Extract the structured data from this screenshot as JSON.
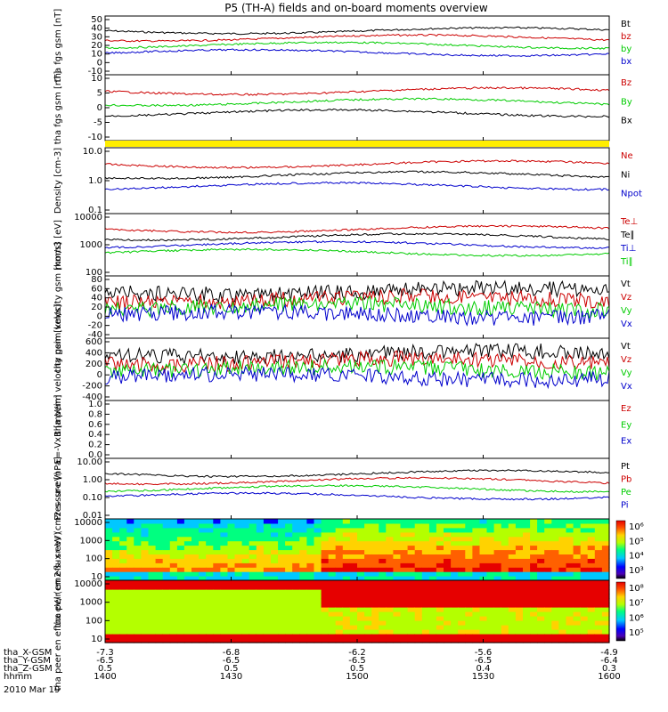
{
  "chart_data": {
    "type": "line",
    "title": "P5 (TH-A) fields and on-board moments overview",
    "date": "2010 Mar 19",
    "time_axis": {
      "label": "hhmm",
      "ticks": [
        "1400",
        "1430",
        "1500",
        "1530",
        "1600"
      ]
    },
    "ephemeris": [
      {
        "label": "tha_X-GSM",
        "values": [
          "-7.3",
          "-6.8",
          "-6.2",
          "-5.6",
          "-4.9"
        ]
      },
      {
        "label": "tha_Y-GSM",
        "values": [
          "-6.5",
          "-6.5",
          "-6.5",
          "-6.5",
          "-6.4"
        ]
      },
      {
        "label": "tha_Z-GSM",
        "values": [
          "0.5",
          "0.5",
          "0.5",
          "0.4",
          "0.3"
        ]
      }
    ],
    "panels": [
      {
        "id": "fgs_gsm",
        "ylabel": [
          "tha",
          "fgs",
          "gsm",
          "[nT]"
        ],
        "ylim": [
          -10,
          50
        ],
        "ticks": [
          "50",
          "40",
          "30",
          "20",
          "10",
          "0",
          "-10"
        ],
        "series": [
          {
            "name": "Bt",
            "color": "#000000"
          },
          {
            "name": "bz",
            "color": "#cc0000"
          },
          {
            "name": "by",
            "color": "#00cc00"
          },
          {
            "name": "bx",
            "color": "#0000cc"
          }
        ]
      },
      {
        "id": "fgs_sm",
        "ylabel": [
          "tha",
          "fgs",
          "gsm",
          "[nT]"
        ],
        "ylim": [
          -15,
          10
        ],
        "ticks": [
          "10",
          "5",
          "0",
          "-5",
          "-10"
        ],
        "series": [
          {
            "name": "Bz",
            "color": "#cc0000"
          },
          {
            "name": "By",
            "color": "#00cc00"
          },
          {
            "name": "Bx",
            "color": "#000000"
          }
        ]
      },
      {
        "id": "density",
        "ylabel": [
          "Density",
          "[cm-3]"
        ],
        "ylim": [
          0.1,
          10
        ],
        "log": true,
        "ticks": [
          "10.0",
          "1.0",
          "0.1"
        ],
        "series": [
          {
            "name": "Ne",
            "color": "#cc0000"
          },
          {
            "name": "Ni",
            "color": "#000000"
          },
          {
            "name": "Npot",
            "color": "#0000cc"
          }
        ]
      },
      {
        "id": "temperature",
        "ylabel": [
          "mom3",
          "[eV]"
        ],
        "ylim": [
          100,
          10000
        ],
        "log": true,
        "ticks": [
          "10000",
          "1000",
          "100"
        ],
        "series": [
          {
            "name": "Te⊥",
            "color": "#cc0000"
          },
          {
            "name": "Te∥",
            "color": "#000000"
          },
          {
            "name": "Ti⊥",
            "color": "#0000cc"
          },
          {
            "name": "Ti∥",
            "color": "#00cc00"
          }
        ]
      },
      {
        "id": "velocity_e",
        "ylabel": [
          "tha",
          "peim",
          "velocity",
          "gsm",
          "[km/s]"
        ],
        "ylim": [
          -40,
          80
        ],
        "ticks": [
          "80",
          "60",
          "40",
          "20",
          "0",
          "-20",
          "-40"
        ],
        "series": [
          {
            "name": "Vt",
            "color": "#000000"
          },
          {
            "name": "Vz",
            "color": "#cc0000"
          },
          {
            "name": "Vy",
            "color": "#00cc00"
          },
          {
            "name": "Vx",
            "color": "#0000cc"
          }
        ]
      },
      {
        "id": "velocity_i",
        "ylabel": [
          "tha",
          "peim",
          "velocity",
          "gsm",
          "[km/s]"
        ],
        "ylim": [
          -600,
          600
        ],
        "ticks": [
          "600",
          "400",
          "200",
          "0",
          "-200",
          "-400"
        ],
        "series": [
          {
            "name": "Vt",
            "color": "#000000"
          },
          {
            "name": "Vz",
            "color": "#cc0000"
          },
          {
            "name": "Vy",
            "color": "#00cc00"
          },
          {
            "name": "Vx",
            "color": "#0000cc"
          }
        ]
      },
      {
        "id": "efield",
        "ylabel": [
          "E=-VxB",
          "[mV/m]"
        ],
        "ylim": [
          0,
          1
        ],
        "ticks": [
          "1.0",
          "0.8",
          "0.6",
          "0.4",
          "0.2",
          "0.0"
        ],
        "series": [
          {
            "name": "Ez",
            "color": "#cc0000"
          },
          {
            "name": "Ey",
            "color": "#00cc00"
          },
          {
            "name": "Ex",
            "color": "#0000cc"
          }
        ]
      },
      {
        "id": "pressure",
        "ylabel": [
          "Pressure",
          "[nPa]"
        ],
        "ylim": [
          0.01,
          10
        ],
        "log": true,
        "ticks": [
          "10.00",
          "1.00",
          "0.10",
          "0.01"
        ],
        "series": [
          {
            "name": "Pt",
            "color": "#000000"
          },
          {
            "name": "Pb",
            "color": "#cc0000"
          },
          {
            "name": "Pe",
            "color": "#00cc00"
          },
          {
            "name": "Pi",
            "color": "#0000cc"
          }
        ]
      },
      {
        "id": "ion_spec",
        "type": "heatmap",
        "ylabel": [
          "tha",
          "peir",
          "en",
          "eflux",
          "eV/",
          "(cm2-s-",
          "sr-eV)"
        ],
        "ylim": [
          10,
          10000
        ],
        "log": true,
        "ticks": [
          "10000",
          "1000",
          "100",
          "10"
        ],
        "colorbar": [
          "10⁶",
          "10⁵",
          "10⁴",
          "10³"
        ]
      },
      {
        "id": "elec_spec",
        "type": "heatmap",
        "ylabel": [
          "tha",
          "peer",
          "en",
          "eflux",
          "eV/",
          "(cm2-s-",
          "sr-eV)"
        ],
        "ylim": [
          10,
          10000
        ],
        "log": true,
        "ticks": [
          "10000",
          "1000",
          "100",
          "10"
        ],
        "colorbar": [
          "10⁸",
          "10⁷",
          "10⁶",
          "10⁵"
        ]
      }
    ]
  }
}
